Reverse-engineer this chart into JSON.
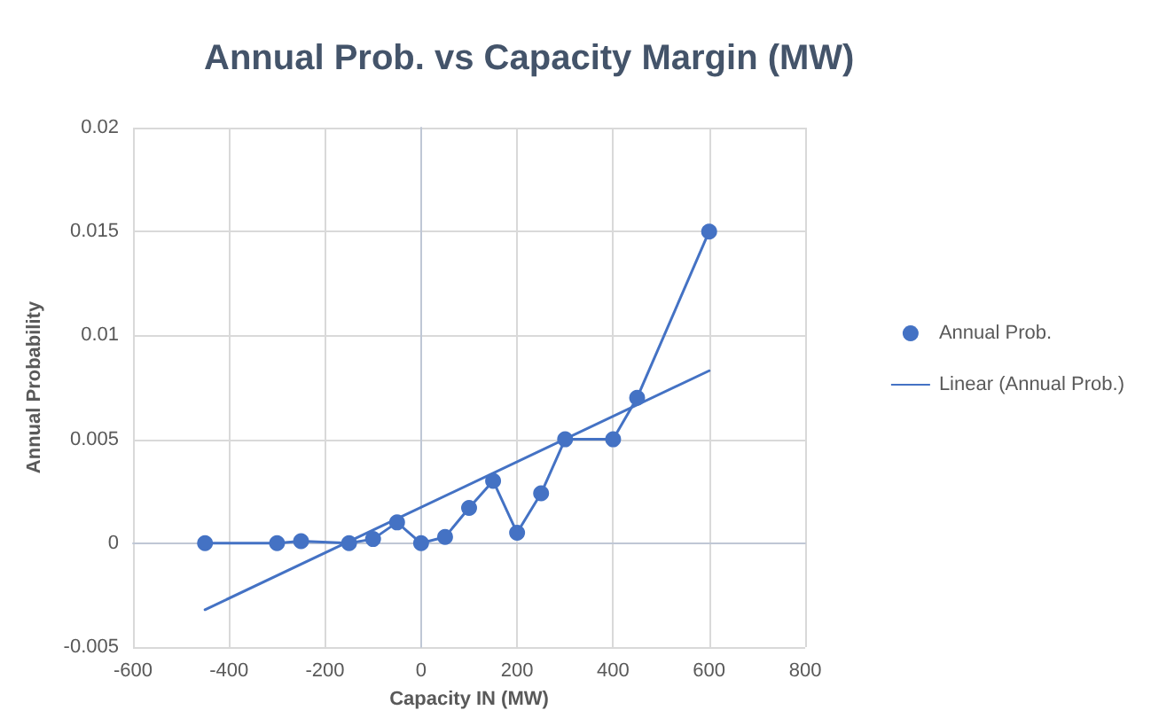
{
  "chart_data": {
    "type": "line",
    "title": "Annual Prob. vs Capacity Margin (MW)",
    "xlabel": "Capacity IN (MW)",
    "ylabel": "Annual Probability",
    "x": [
      -450,
      -300,
      -250,
      -150,
      -100,
      -50,
      0,
      50,
      100,
      150,
      200,
      250,
      300,
      400,
      450,
      600
    ],
    "series": [
      {
        "name": "Annual Prob.",
        "color": "#4472c4",
        "values": [
          0,
          0,
          0.0001,
          0,
          0.0002,
          0.001,
          0,
          0.0003,
          0.0017,
          0.003,
          0.0005,
          0.0024,
          0.005,
          0.005,
          0.007,
          0.015
        ]
      },
      {
        "name": "Linear (Annual Prob.)",
        "type": "line",
        "color": "#4472c4",
        "marker": "none",
        "x": [
          -450,
          600
        ],
        "values": [
          -0.0032,
          0.0083
        ]
      }
    ],
    "xlim": [
      -600,
      800
    ],
    "xticks": [
      -600,
      -400,
      -200,
      0,
      200,
      400,
      600,
      800
    ],
    "ylim": [
      -0.005,
      0.02
    ],
    "yticks": [
      -0.005,
      0,
      0.005,
      0.01,
      0.015,
      0.02
    ],
    "grid": true,
    "legend": "right",
    "marker": "circle",
    "line_style": "solid"
  }
}
